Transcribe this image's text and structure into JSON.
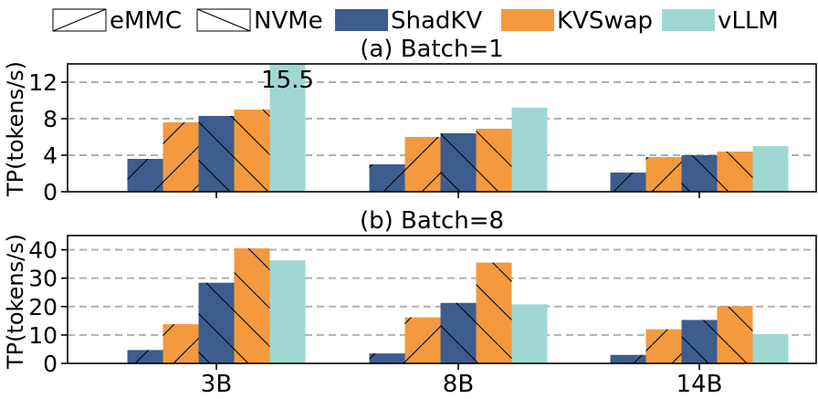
{
  "colors": {
    "shadkv": "#3c5d8e",
    "kvswap": "#f29a3d",
    "vllm": "#9fd8d3",
    "grid": "#b0b0b0",
    "axis": "#000000"
  },
  "legend": [
    {
      "label": "eMMC",
      "kind": "hatch-forward"
    },
    {
      "label": "NVMe",
      "kind": "hatch-backward"
    },
    {
      "label": "ShadKV",
      "kind": "color-shadkv"
    },
    {
      "label": "KVSwap",
      "kind": "color-kvswap"
    },
    {
      "label": "vLLM",
      "kind": "color-vllm"
    }
  ],
  "chart_data": [
    {
      "type": "bar",
      "title": "(a) Batch=1",
      "ylabel": "TP(tokens/s)",
      "xlabel": "",
      "categories": [
        "3B",
        "8B",
        "14B"
      ],
      "ylim": [
        0,
        14
      ],
      "yticks": [
        "0",
        "4",
        "8",
        "12"
      ],
      "ytick_values": [
        0,
        4,
        8,
        12
      ],
      "grid": true,
      "series": [
        {
          "name": "ShadKV eMMC",
          "color": "shadkv",
          "hatch": "forward",
          "values": [
            3.6,
            3.0,
            2.1
          ]
        },
        {
          "name": "KVSwap eMMC",
          "color": "kvswap",
          "hatch": "forward",
          "values": [
            7.6,
            6.0,
            3.8
          ]
        },
        {
          "name": "ShadKV NVMe",
          "color": "shadkv",
          "hatch": "backward",
          "values": [
            8.3,
            6.4,
            4.0
          ]
        },
        {
          "name": "KVSwap NVMe",
          "color": "kvswap",
          "hatch": "backward",
          "values": [
            9.0,
            6.9,
            4.4
          ]
        },
        {
          "name": "vLLM",
          "color": "vllm",
          "hatch": "none",
          "values": [
            15.5,
            9.2,
            5.0
          ]
        }
      ],
      "annotations": [
        {
          "text": "15.5",
          "category": "3B",
          "series": "vLLM"
        }
      ]
    },
    {
      "type": "bar",
      "title": "(b) Batch=8",
      "ylabel": "TP(tokens/s)",
      "xlabel": "",
      "categories": [
        "3B",
        "8B",
        "14B"
      ],
      "ylim": [
        0,
        45
      ],
      "yticks": [
        "0",
        "10",
        "20",
        "30",
        "40"
      ],
      "ytick_values": [
        0,
        10,
        20,
        30,
        40
      ],
      "grid": true,
      "series": [
        {
          "name": "ShadKV eMMC",
          "color": "shadkv",
          "hatch": "forward",
          "values": [
            4.7,
            3.5,
            3.0
          ]
        },
        {
          "name": "KVSwap eMMC",
          "color": "kvswap",
          "hatch": "forward",
          "values": [
            13.8,
            16.2,
            12.0
          ]
        },
        {
          "name": "ShadKV NVMe",
          "color": "shadkv",
          "hatch": "backward",
          "values": [
            28.4,
            21.3,
            15.3
          ]
        },
        {
          "name": "KVSwap NVMe",
          "color": "kvswap",
          "hatch": "backward",
          "values": [
            40.5,
            35.5,
            20.1
          ]
        },
        {
          "name": "vLLM",
          "color": "vllm",
          "hatch": "none",
          "values": [
            36.3,
            20.8,
            10.3
          ]
        }
      ],
      "annotations": []
    }
  ]
}
